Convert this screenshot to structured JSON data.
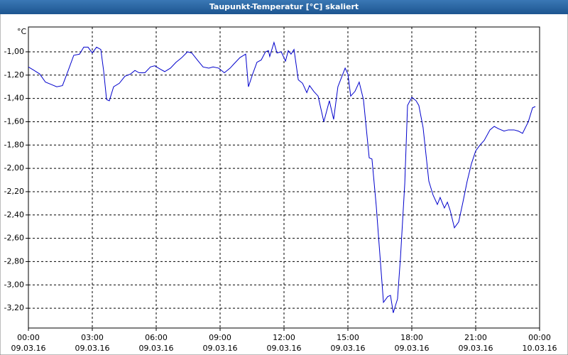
{
  "chart_data": {
    "type": "line",
    "title": "Taupunkt-Temperatur [°C] skaliert",
    "y_unit": "°C",
    "xlim": [
      0,
      24
    ],
    "xticks": [
      {
        "value": 0,
        "label": "00:00"
      },
      {
        "value": 3,
        "label": "03:00"
      },
      {
        "value": 6,
        "label": "06:00"
      },
      {
        "value": 9,
        "label": "09:00"
      },
      {
        "value": 12,
        "label": "12:00"
      },
      {
        "value": 15,
        "label": "15:00"
      },
      {
        "value": 18,
        "label": "18:00"
      },
      {
        "value": 21,
        "label": "21:00"
      },
      {
        "value": 24,
        "label": "00:00"
      }
    ],
    "xtick_dates": [
      "09.03.16",
      "09.03.16",
      "09.03.16",
      "09.03.16",
      "09.03.16",
      "09.03.16",
      "09.03.16",
      "09.03.16",
      "10.03.16"
    ],
    "ylim": [
      -3.37,
      -0.787
    ],
    "yticks": [
      {
        "value": -1.0,
        "label": "-1,00"
      },
      {
        "value": -1.2,
        "label": "-1,20"
      },
      {
        "value": -1.4,
        "label": "-1,40"
      },
      {
        "value": -1.6,
        "label": "-1,60"
      },
      {
        "value": -1.8,
        "label": "-1,80"
      },
      {
        "value": -2.0,
        "label": "-2,00"
      },
      {
        "value": -2.2,
        "label": "-2,20"
      },
      {
        "value": -2.4,
        "label": "-2,40"
      },
      {
        "value": -2.6,
        "label": "-2,60"
      },
      {
        "value": -2.8,
        "label": "-2,80"
      },
      {
        "value": -3.0,
        "label": "-3,00"
      },
      {
        "value": -3.2,
        "label": "-3,20"
      }
    ],
    "grid": true,
    "x": [
      0,
      0.27,
      0.53,
      0.8,
      1.07,
      1.33,
      1.6,
      1.87,
      2.13,
      2.4,
      2.6,
      2.8,
      3,
      3.2,
      3.4,
      3.53,
      3.67,
      3.8,
      4,
      4.27,
      4.53,
      4.8,
      5,
      5.2,
      5.47,
      5.73,
      5.93,
      6.2,
      6.4,
      6.67,
      6.93,
      7.2,
      7.47,
      7.67,
      7.93,
      8.2,
      8.47,
      8.67,
      8.93,
      9.2,
      9.47,
      9.67,
      9.93,
      10.2,
      10.33,
      10.53,
      10.73,
      10.93,
      11.13,
      11.27,
      11.33,
      11.53,
      11.67,
      11.87,
      12.07,
      12.2,
      12.33,
      12.47,
      12.67,
      12.87,
      13.07,
      13.2,
      13.4,
      13.6,
      13.87,
      14.13,
      14.33,
      14.53,
      14.87,
      15,
      15.13,
      15.33,
      15.53,
      15.73,
      16,
      16.13,
      16.33,
      16.53,
      16.67,
      16.87,
      17,
      17.13,
      17.33,
      17.47,
      17.67,
      17.8,
      18,
      18.2,
      18.33,
      18.53,
      18.8,
      19,
      19.2,
      19.33,
      19.53,
      19.67,
      19.8,
      20,
      20.2,
      20.4,
      20.6,
      20.8,
      21,
      21.2,
      21.4,
      21.67,
      21.87,
      22.07,
      22.33,
      22.53,
      22.8,
      23,
      23.2,
      23.47,
      23.67,
      23.8
    ],
    "series": [
      {
        "color": "#0000cc",
        "values": [
          -1.13,
          -1.16,
          -1.19,
          -1.26,
          -1.28,
          -1.3,
          -1.29,
          -1.16,
          -1.03,
          -1.02,
          -0.96,
          -0.96,
          -1.01,
          -0.96,
          -0.98,
          -1.16,
          -1.41,
          -1.42,
          -1.3,
          -1.27,
          -1.21,
          -1.19,
          -1.16,
          -1.18,
          -1.18,
          -1.13,
          -1.12,
          -1.15,
          -1.17,
          -1.14,
          -1.09,
          -1.05,
          -1.0,
          -1.01,
          -1.07,
          -1.13,
          -1.14,
          -1.13,
          -1.14,
          -1.18,
          -1.14,
          -1.1,
          -1.05,
          -1.02,
          -1.3,
          -1.19,
          -1.09,
          -1.07,
          -1.0,
          -0.99,
          -1.04,
          -0.92,
          -1.01,
          -1.0,
          -1.08,
          -0.99,
          -1.02,
          -0.98,
          -1.24,
          -1.27,
          -1.35,
          -1.29,
          -1.34,
          -1.38,
          -1.6,
          -1.42,
          -1.58,
          -1.3,
          -1.14,
          -1.19,
          -1.38,
          -1.34,
          -1.26,
          -1.41,
          -1.91,
          -1.92,
          -2.32,
          -2.81,
          -3.15,
          -3.1,
          -3.09,
          -3.24,
          -3.12,
          -2.76,
          -2.13,
          -1.46,
          -1.39,
          -1.42,
          -1.46,
          -1.65,
          -2.11,
          -2.23,
          -2.31,
          -2.25,
          -2.34,
          -2.29,
          -2.36,
          -2.51,
          -2.46,
          -2.29,
          -2.11,
          -1.96,
          -1.85,
          -1.8,
          -1.76,
          -1.67,
          -1.64,
          -1.66,
          -1.68,
          -1.67,
          -1.67,
          -1.68,
          -1.7,
          -1.6,
          -1.48,
          -1.47
        ]
      }
    ]
  }
}
